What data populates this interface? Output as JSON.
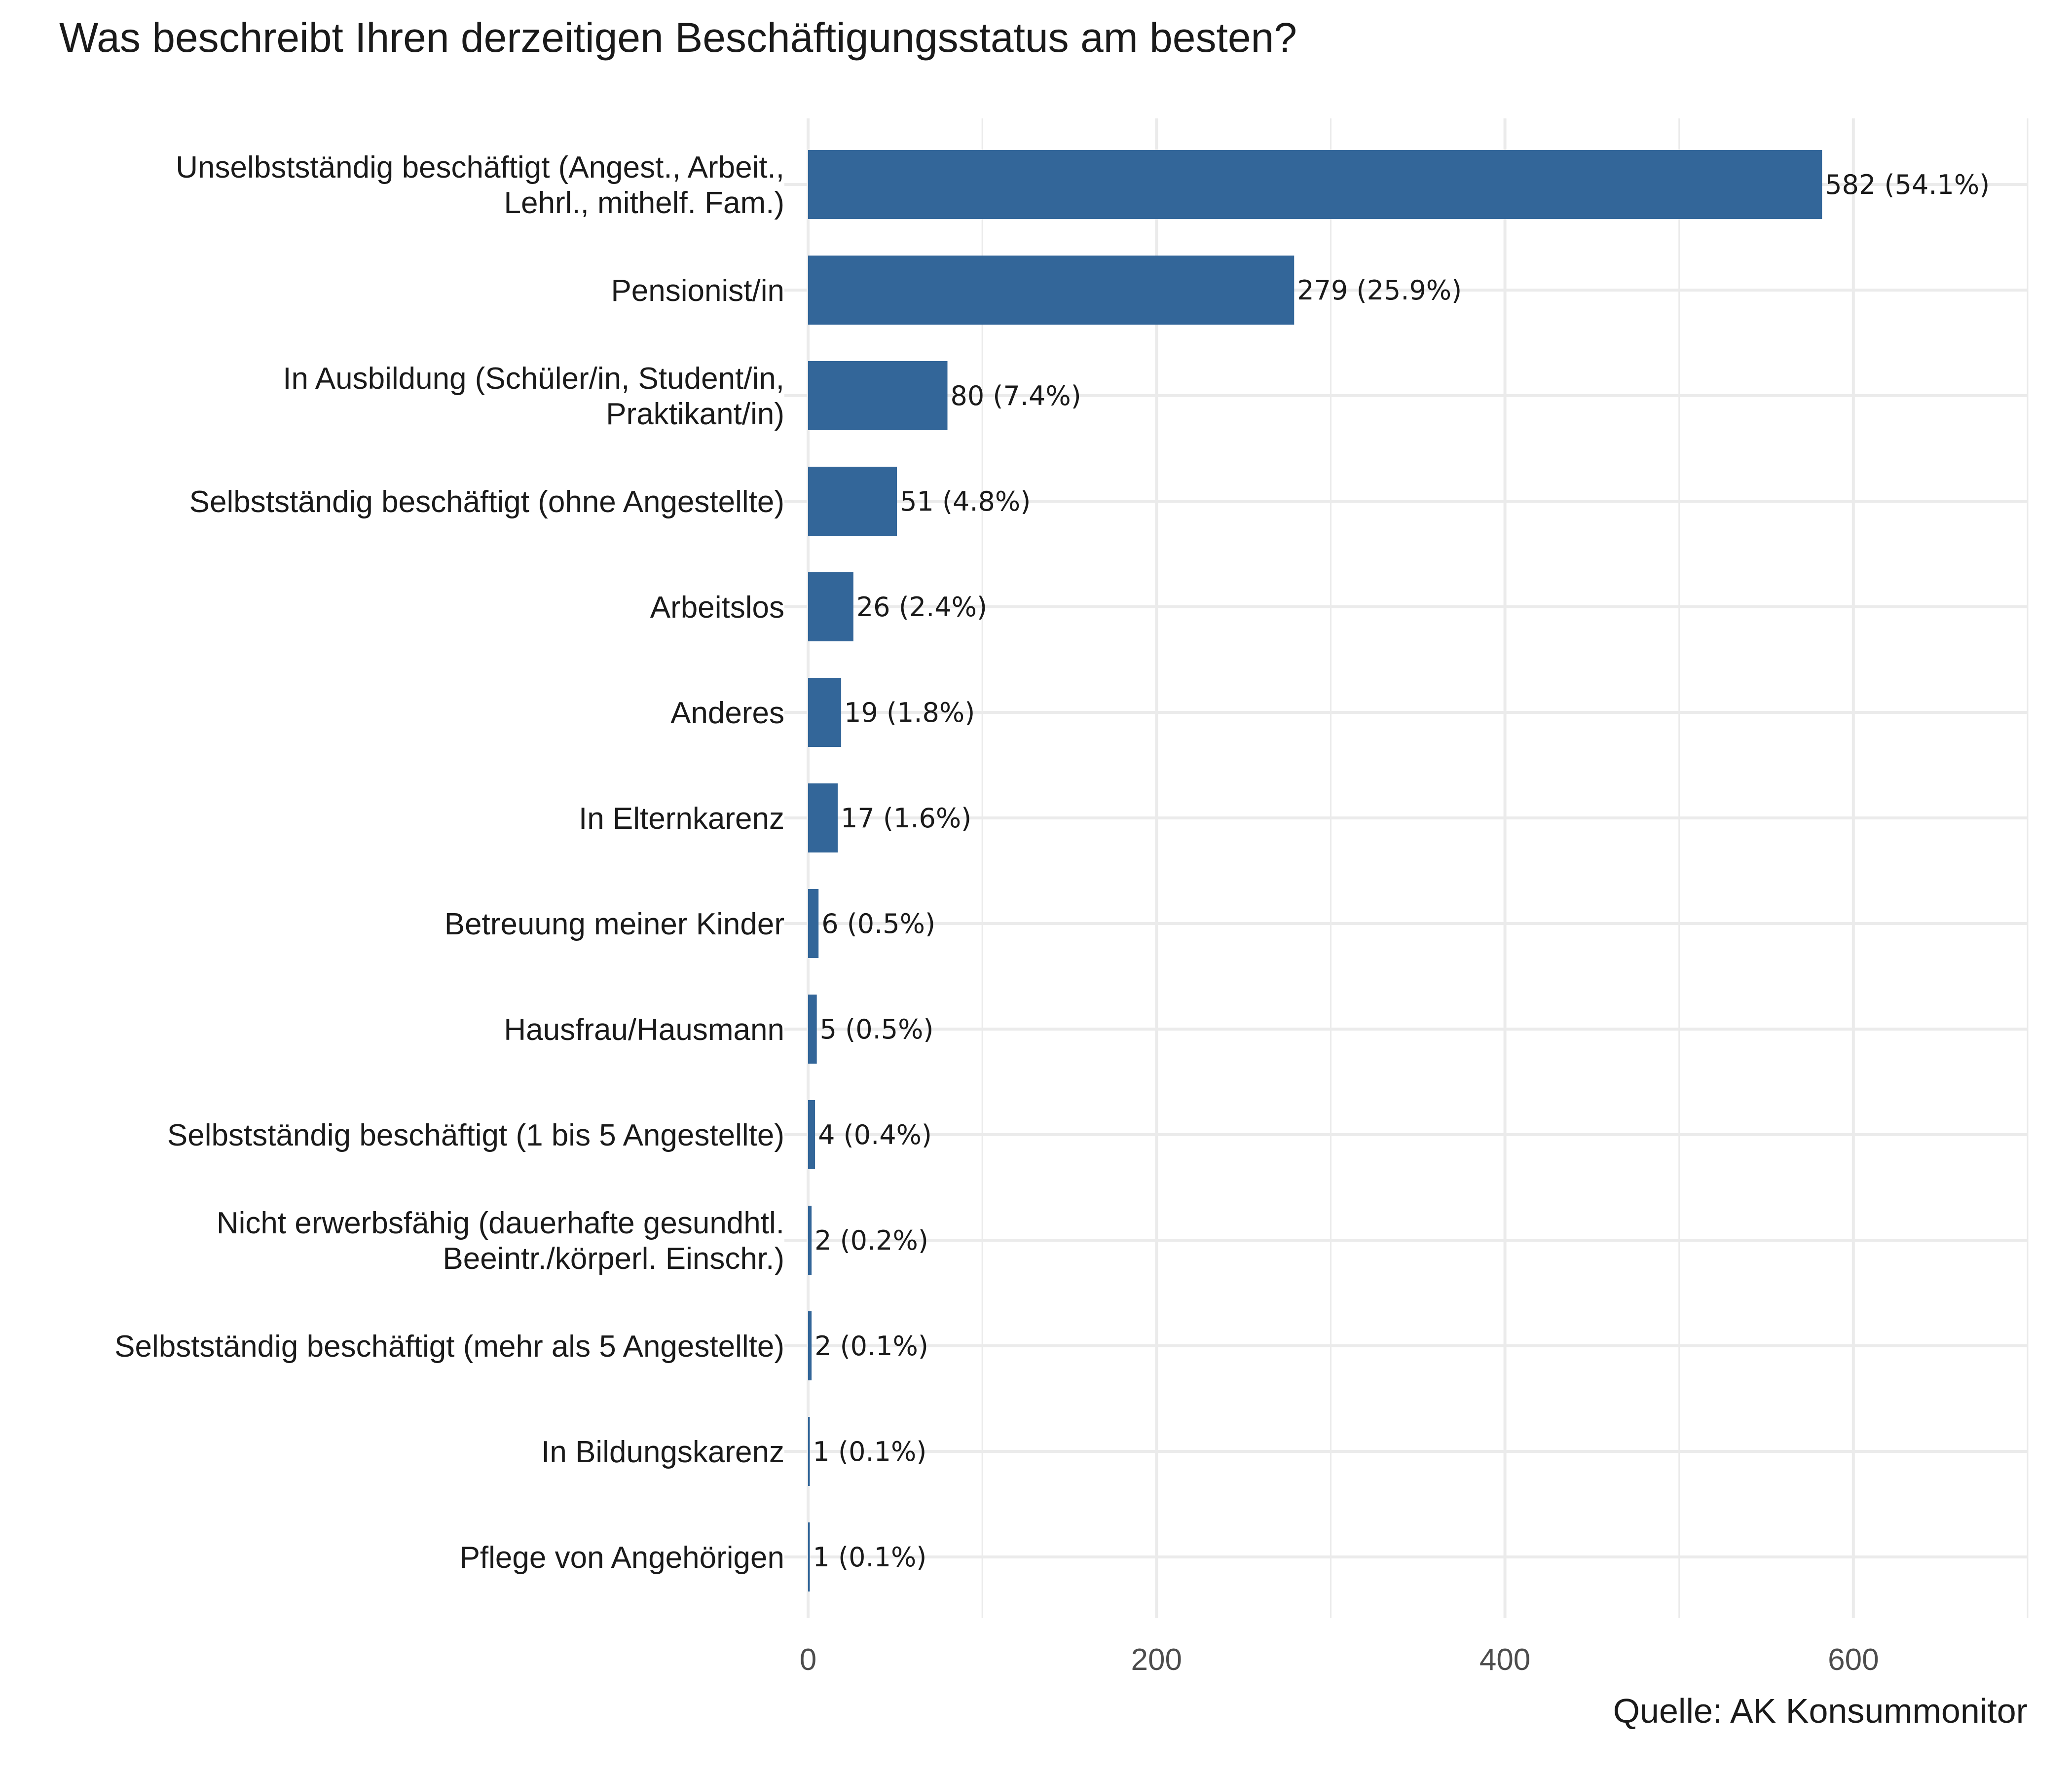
{
  "chart_data": {
    "type": "bar",
    "orientation": "horizontal",
    "title": "Was beschreibt Ihren derzeitigen Beschäftigungsstatus am besten?",
    "caption": "Quelle: AK Konsummonitor",
    "xlabel": "",
    "ylabel": "",
    "xlim": [
      0,
      700
    ],
    "xticks": [
      0,
      200,
      400,
      600
    ],
    "xtick_labels": [
      "0",
      "200",
      "400",
      "600"
    ],
    "grid": true,
    "legend": "none",
    "bar_color": "#336699",
    "categories": [
      [
        "Unselbstständig beschäftigt (Angest., Arbeit.,",
        "Lehrl., mithelf. Fam.)"
      ],
      [
        "Pensionist/in"
      ],
      [
        "In Ausbildung (Schüler/in, Student/in,",
        "Praktikant/in)"
      ],
      [
        "Selbstständig beschäftigt (ohne Angestellte)"
      ],
      [
        "Arbeitslos"
      ],
      [
        "Anderes"
      ],
      [
        "In Elternkarenz"
      ],
      [
        "Betreuung meiner Kinder"
      ],
      [
        "Hausfrau/Hausmann"
      ],
      [
        "Selbstständig beschäftigt (1 bis 5 Angestellte)"
      ],
      [
        "Nicht erwerbsfähig (dauerhafte gesundhtl.",
        "Beeintr./körperl. Einschr.)"
      ],
      [
        "Selbstständig beschäftigt (mehr als 5 Angestellte)"
      ],
      [
        "In Bildungskarenz"
      ],
      [
        "Pflege von Angehörigen"
      ]
    ],
    "values": [
      582,
      279,
      80,
      51,
      26,
      19,
      17,
      6,
      5,
      4,
      2,
      2,
      1,
      1
    ],
    "value_labels": [
      "582 (54.1%)",
      "279 (25.9%)",
      "80 (7.4%)",
      "51 (4.8%)",
      "26 (2.4%)",
      "19 (1.8%)",
      "17 (1.6%)",
      "6 (0.5%)",
      "5 (0.5%)",
      "4 (0.4%)",
      "2 (0.2%)",
      "2 (0.1%)",
      "1 (0.1%)",
      "1 (0.1%)"
    ]
  }
}
